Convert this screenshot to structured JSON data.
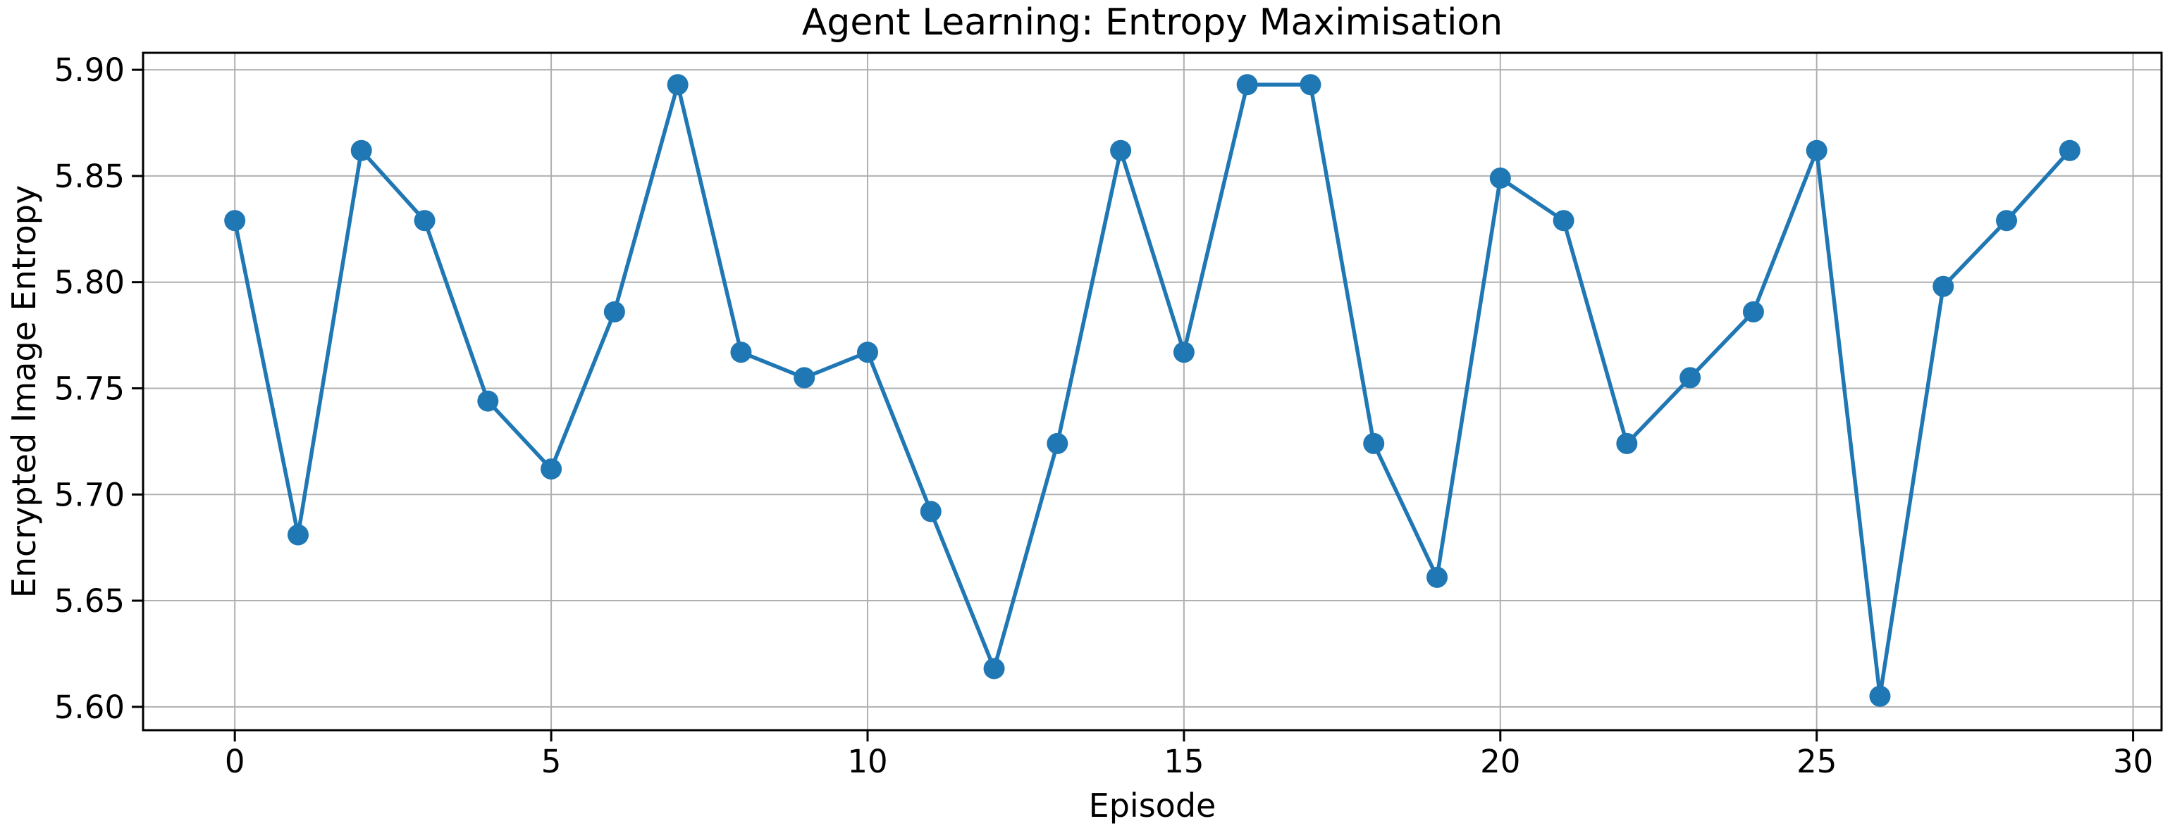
{
  "chart_data": {
    "type": "line",
    "title": "Agent Learning: Entropy Maximisation",
    "xlabel": "Episode",
    "ylabel": "Encrypted Image Entropy",
    "x": [
      0,
      1,
      2,
      3,
      4,
      5,
      6,
      7,
      8,
      9,
      10,
      11,
      12,
      13,
      14,
      15,
      16,
      17,
      18,
      19,
      20,
      21,
      22,
      23,
      24,
      25,
      26,
      27,
      28,
      29
    ],
    "y": [
      5.829,
      5.681,
      5.862,
      5.829,
      5.744,
      5.712,
      5.786,
      5.893,
      5.767,
      5.755,
      5.767,
      5.692,
      5.618,
      5.724,
      5.862,
      5.767,
      5.893,
      5.893,
      5.724,
      5.661,
      5.849,
      5.829,
      5.724,
      5.755,
      5.786,
      5.862,
      5.605,
      5.798,
      5.829,
      5.862
    ],
    "xlim": [
      -1.45,
      30.45
    ],
    "ylim": [
      5.589,
      5.908
    ],
    "xticks": [
      0,
      5,
      10,
      15,
      20,
      25,
      30
    ],
    "xtick_labels": [
      "0",
      "5",
      "10",
      "15",
      "20",
      "25",
      "30"
    ],
    "yticks": [
      5.6,
      5.65,
      5.7,
      5.75,
      5.8,
      5.85,
      5.9
    ],
    "ytick_labels": [
      "5.60",
      "5.65",
      "5.70",
      "5.75",
      "5.80",
      "5.85",
      "5.90"
    ],
    "grid": true,
    "legend": "none",
    "marker": "o",
    "line_color": "#1f77b4",
    "marker_color": "#1f77b4",
    "grid_color": "#b0b0b0",
    "spine_color": "#000000",
    "tick_color": "#000000",
    "text_color": "#000000",
    "background_color": "#ffffff"
  }
}
